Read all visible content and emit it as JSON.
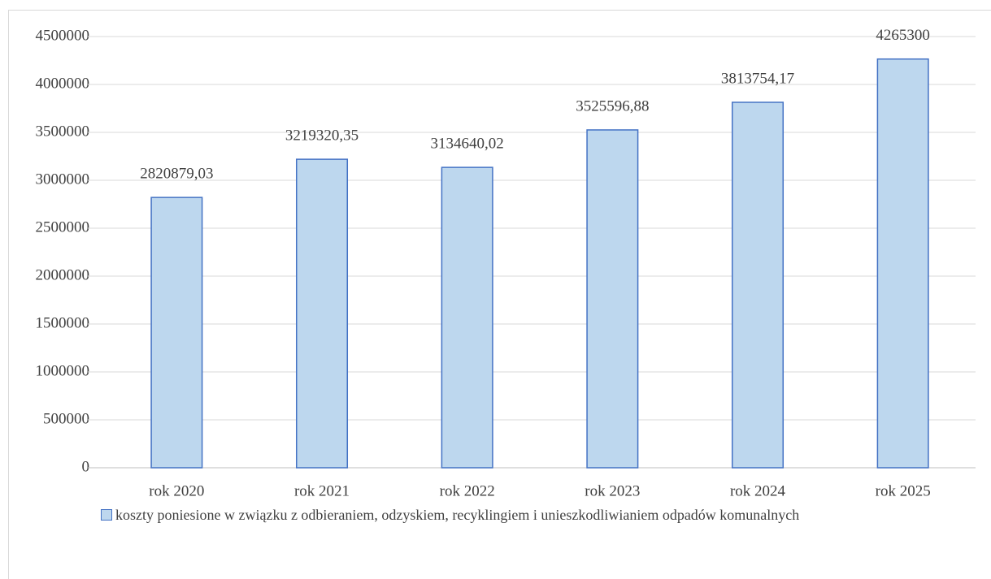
{
  "chart_data": {
    "type": "bar",
    "categories": [
      "rok 2020",
      "rok 2021",
      "rok 2022",
      "rok 2023",
      "rok 2024",
      "rok 2025"
    ],
    "series": [
      {
        "name": "koszty poniesione w związku z odbieraniem, odzyskiem, recyklingiem i unieszkodliwianiem odpadów komunalnych",
        "color": "#bdd7ee",
        "edgecolor": "#4472c4",
        "values": [
          2820879.03,
          3219320.35,
          3134640.02,
          3525596.88,
          3813754.17,
          4265300
        ],
        "value_labels": [
          "2820879,03",
          "3219320,35",
          "3134640,02",
          "3525596,88",
          "3813754,17",
          "4265300"
        ]
      }
    ],
    "ylim": [
      0,
      4500000
    ],
    "yticks": [
      0,
      500000,
      1000000,
      1500000,
      2000000,
      2500000,
      3000000,
      3500000,
      4000000,
      4500000
    ],
    "grid": true,
    "legend": "bottom"
  }
}
